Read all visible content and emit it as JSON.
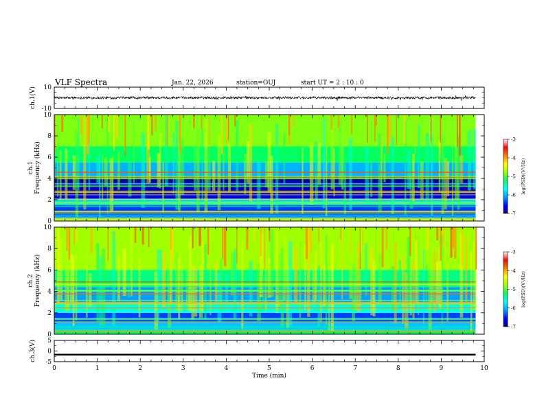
{
  "header": {
    "title": "VLF Spectra",
    "date": "Jan. 22, 2026",
    "station": "station=OUJ",
    "start": "start UT =  2 : 10 : 0"
  },
  "chart_data": [
    {
      "type": "line",
      "panel": "ch1-waveform",
      "ylabel": "ch.1(V)",
      "ylim": [
        -10,
        10
      ],
      "yticks": [
        "10",
        "-10"
      ],
      "xlim": [
        0,
        10
      ],
      "series": [
        {
          "baseline": 0,
          "amplitude": 1.2,
          "color": "#000000"
        }
      ]
    },
    {
      "type": "heatmap",
      "panel": "ch1-spectrogram",
      "ylabel_line1": "ch.1",
      "ylabel_line2": "Frequency (kHz)",
      "ylim": [
        0,
        10
      ],
      "yticks": [
        "0",
        "2",
        "4",
        "6",
        "8",
        "10"
      ],
      "xlim": [
        0,
        10
      ],
      "data_end_min": 9.8,
      "colorbar": {
        "range": [
          -7,
          -3
        ],
        "ticks": [
          "-3",
          "-4",
          "-5",
          "-6",
          "-7"
        ],
        "label": "log(PSD)(V²/Hz)",
        "colors": [
          "#000080",
          "#0000ff",
          "#00a0ff",
          "#00ffff",
          "#00ff60",
          "#a0ff00",
          "#ffff00",
          "#ff8000",
          "#ff0000",
          "#ffffff"
        ]
      },
      "bands": [
        {
          "from_khz": 0.0,
          "to_khz": 0.3,
          "log_psd": -4.2
        },
        {
          "from_khz": 0.3,
          "to_khz": 0.6,
          "log_psd": -6.0
        },
        {
          "from_khz": 0.6,
          "to_khz": 1.5,
          "log_psd": -6.3
        },
        {
          "from_khz": 1.5,
          "to_khz": 2.1,
          "log_psd": -5.7
        },
        {
          "from_khz": 2.1,
          "to_khz": 3.0,
          "log_psd": -6.6
        },
        {
          "from_khz": 3.0,
          "to_khz": 4.2,
          "log_psd": -6.8
        },
        {
          "from_khz": 4.2,
          "to_khz": 5.5,
          "log_psd": -5.9
        },
        {
          "from_khz": 5.5,
          "to_khz": 7.0,
          "log_psd": -5.0
        },
        {
          "from_khz": 7.0,
          "to_khz": 10.0,
          "log_psd": -4.6
        }
      ]
    },
    {
      "type": "heatmap",
      "panel": "ch2-spectrogram",
      "ylabel_line1": "ch.2",
      "ylabel_line2": "Frequency (kHz)",
      "ylim": [
        0,
        10
      ],
      "yticks": [
        "0",
        "2",
        "4",
        "6",
        "8",
        "10"
      ],
      "xlim": [
        0,
        10
      ],
      "data_end_min": 9.8,
      "colorbar": {
        "range": [
          -7,
          -3
        ],
        "ticks": [
          "-3",
          "-4",
          "-5",
          "-6",
          "-7"
        ],
        "label": "log(PSD)(V²/Hz)",
        "colors": [
          "#000080",
          "#0000ff",
          "#00a0ff",
          "#00ffff",
          "#00ff60",
          "#a0ff00",
          "#ffff00",
          "#ff8000",
          "#ff0000",
          "#ffffff"
        ]
      },
      "bands": [
        {
          "from_khz": 0.0,
          "to_khz": 0.4,
          "log_psd": -5.0
        },
        {
          "from_khz": 0.4,
          "to_khz": 1.2,
          "log_psd": -5.8
        },
        {
          "from_khz": 1.2,
          "to_khz": 2.0,
          "log_psd": -6.3
        },
        {
          "from_khz": 2.0,
          "to_khz": 3.0,
          "log_psd": -5.4
        },
        {
          "from_khz": 3.0,
          "to_khz": 4.4,
          "log_psd": -6.0
        },
        {
          "from_khz": 4.4,
          "to_khz": 6.0,
          "log_psd": -5.1
        },
        {
          "from_khz": 6.0,
          "to_khz": 10.0,
          "log_psd": -4.5
        }
      ]
    },
    {
      "type": "line",
      "panel": "ch3-waveform",
      "ylabel": "ch.3(V)",
      "ylim": [
        -5,
        5
      ],
      "yticks": [
        "5",
        "0",
        "-5"
      ],
      "xlim": [
        0,
        10
      ],
      "xlabel": "Time (min)",
      "xticks": [
        "0",
        "1",
        "2",
        "3",
        "4",
        "5",
        "6",
        "7",
        "8",
        "9",
        "10"
      ],
      "series": [
        {
          "baseline": -1.7,
          "thickness_v": 0.8,
          "color": "#000000"
        }
      ]
    }
  ]
}
